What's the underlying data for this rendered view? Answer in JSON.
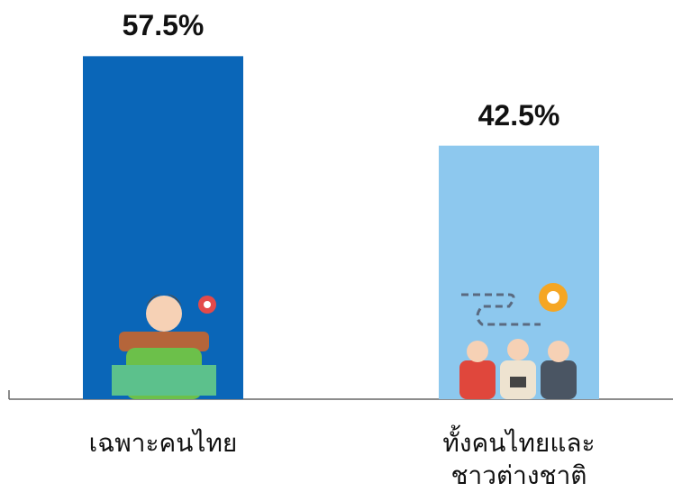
{
  "chart_data": {
    "type": "bar",
    "categories": [
      "เฉพาะคนไทย",
      "ทั้งคนไทยและ\nชาวต่างชาติ"
    ],
    "values": [
      57.5,
      42.5
    ],
    "value_labels": [
      "57.5%",
      "42.5%"
    ],
    "colors": [
      "#0a66b8",
      "#8dc8ee"
    ]
  }
}
